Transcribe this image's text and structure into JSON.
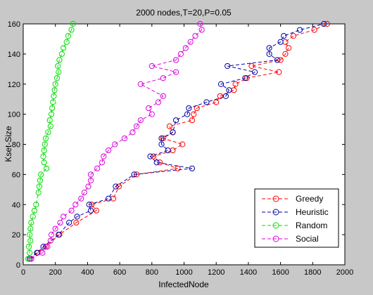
{
  "chart_data": {
    "type": "scatter",
    "title": "2000 nodes,T=20,P=0.05",
    "xlabel": "InfectedNode",
    "ylabel": "Kset-Size",
    "xlim": [
      0,
      2000
    ],
    "ylim": [
      0,
      160
    ],
    "xticks": [
      "0",
      "200",
      "400",
      "600",
      "800",
      "1000",
      "1200",
      "1400",
      "1600",
      "1800",
      "2000"
    ],
    "yticks": [
      "0",
      "20",
      "40",
      "60",
      "80",
      "100",
      "120",
      "140",
      "160"
    ],
    "grid": false,
    "legend_position": "bottom-right",
    "series": [
      {
        "name": "Greedy",
        "color": "#ff0000",
        "dashed": true,
        "points": [
          [
            50,
            4
          ],
          [
            90,
            8
          ],
          [
            140,
            12
          ],
          [
            225,
            20
          ],
          [
            330,
            28
          ],
          [
            455,
            36
          ],
          [
            425,
            40
          ],
          [
            560,
            44
          ],
          [
            595,
            52
          ],
          [
            705,
            60
          ],
          [
            960,
            64
          ],
          [
            850,
            68
          ],
          [
            810,
            72
          ],
          [
            930,
            76
          ],
          [
            990,
            80
          ],
          [
            870,
            84
          ],
          [
            930,
            88
          ],
          [
            910,
            92
          ],
          [
            1050,
            96
          ],
          [
            1060,
            100
          ],
          [
            1080,
            104
          ],
          [
            1200,
            108
          ],
          [
            1225,
            112
          ],
          [
            1310,
            116
          ],
          [
            1320,
            120
          ],
          [
            1390,
            124
          ],
          [
            1590,
            128
          ],
          [
            1420,
            132
          ],
          [
            1600,
            136
          ],
          [
            1630,
            140
          ],
          [
            1650,
            144
          ],
          [
            1630,
            148
          ],
          [
            1680,
            152
          ],
          [
            1810,
            156
          ],
          [
            1890,
            160
          ]
        ]
      },
      {
        "name": "Heuristic",
        "color": "#0000aa",
        "dashed": true,
        "points": [
          [
            40,
            4
          ],
          [
            85,
            8
          ],
          [
            125,
            12
          ],
          [
            220,
            20
          ],
          [
            285,
            28
          ],
          [
            335,
            32
          ],
          [
            420,
            36
          ],
          [
            410,
            40
          ],
          [
            530,
            44
          ],
          [
            575,
            52
          ],
          [
            690,
            60
          ],
          [
            1050,
            64
          ],
          [
            830,
            68
          ],
          [
            790,
            72
          ],
          [
            900,
            76
          ],
          [
            860,
            80
          ],
          [
            860,
            84
          ],
          [
            930,
            88
          ],
          [
            950,
            96
          ],
          [
            1020,
            100
          ],
          [
            1030,
            104
          ],
          [
            1140,
            108
          ],
          [
            1260,
            112
          ],
          [
            1280,
            116
          ],
          [
            1230,
            120
          ],
          [
            1380,
            124
          ],
          [
            1440,
            128
          ],
          [
            1270,
            132
          ],
          [
            1580,
            136
          ],
          [
            1530,
            140
          ],
          [
            1530,
            144
          ],
          [
            1600,
            148
          ],
          [
            1620,
            152
          ],
          [
            1720,
            156
          ],
          [
            1870,
            160
          ]
        ]
      },
      {
        "name": "Random",
        "color": "#00dd00",
        "dashed": true,
        "points": [
          [
            30,
            4
          ],
          [
            40,
            8
          ],
          [
            35,
            12
          ],
          [
            45,
            16
          ],
          [
            40,
            20
          ],
          [
            45,
            24
          ],
          [
            50,
            28
          ],
          [
            60,
            32
          ],
          [
            70,
            36
          ],
          [
            80,
            40
          ],
          [
            95,
            48
          ],
          [
            100,
            52
          ],
          [
            105,
            56
          ],
          [
            110,
            60
          ],
          [
            145,
            64
          ],
          [
            130,
            68
          ],
          [
            125,
            72
          ],
          [
            130,
            76
          ],
          [
            135,
            80
          ],
          [
            140,
            84
          ],
          [
            155,
            88
          ],
          [
            170,
            92
          ],
          [
            165,
            96
          ],
          [
            175,
            100
          ],
          [
            180,
            104
          ],
          [
            185,
            108
          ],
          [
            190,
            112
          ],
          [
            195,
            116
          ],
          [
            200,
            120
          ],
          [
            210,
            124
          ],
          [
            220,
            128
          ],
          [
            215,
            132
          ],
          [
            225,
            136
          ],
          [
            240,
            140
          ],
          [
            250,
            144
          ],
          [
            270,
            148
          ],
          [
            280,
            152
          ],
          [
            300,
            156
          ],
          [
            310,
            160
          ]
        ]
      },
      {
        "name": "Social",
        "color": "#dd00dd",
        "dashed": true,
        "points": [
          [
            50,
            4
          ],
          [
            120,
            8
          ],
          [
            150,
            12
          ],
          [
            170,
            16
          ],
          [
            175,
            20
          ],
          [
            200,
            24
          ],
          [
            230,
            28
          ],
          [
            250,
            32
          ],
          [
            300,
            36
          ],
          [
            325,
            40
          ],
          [
            360,
            44
          ],
          [
            380,
            48
          ],
          [
            405,
            52
          ],
          [
            420,
            56
          ],
          [
            420,
            60
          ],
          [
            460,
            64
          ],
          [
            490,
            68
          ],
          [
            500,
            72
          ],
          [
            530,
            76
          ],
          [
            570,
            80
          ],
          [
            630,
            84
          ],
          [
            680,
            88
          ],
          [
            705,
            92
          ],
          [
            730,
            96
          ],
          [
            800,
            100
          ],
          [
            780,
            104
          ],
          [
            840,
            108
          ],
          [
            870,
            112
          ],
          [
            730,
            120
          ],
          [
            870,
            124
          ],
          [
            950,
            128
          ],
          [
            800,
            132
          ],
          [
            950,
            136
          ],
          [
            980,
            140
          ],
          [
            1010,
            144
          ],
          [
            1040,
            148
          ],
          [
            1070,
            152
          ],
          [
            1110,
            156
          ],
          [
            1100,
            160
          ]
        ]
      }
    ]
  }
}
